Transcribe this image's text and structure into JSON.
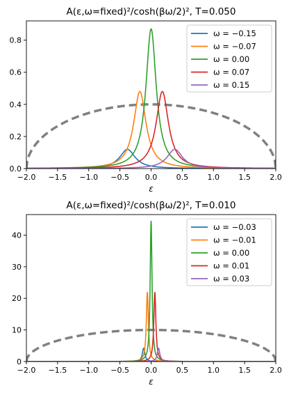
{
  "chart_data": [
    {
      "type": "line",
      "title": "A(ε,ω=fixed)²/cosh(βω/2)², T=0.050",
      "xlabel": "ε",
      "ylabel": "",
      "xlim": [
        -2.0,
        2.0
      ],
      "ylim": [
        0,
        0.92
      ],
      "x_ticks": [
        -2.0,
        -1.5,
        -1.0,
        -0.5,
        0.0,
        0.5,
        1.0,
        1.5,
        2.0
      ],
      "x_tick_labels": [
        "−2.0",
        "−1.5",
        "−1.0",
        "−0.5",
        "0.0",
        "0.5",
        "1.0",
        "1.5",
        "2.0"
      ],
      "y_ticks": [
        0.0,
        0.2,
        0.4,
        0.6,
        0.8
      ],
      "y_tick_labels": [
        "0.0",
        "0.2",
        "0.4",
        "0.6",
        "0.8"
      ],
      "legend_position": "top-right",
      "reference_curve": {
        "shape": "semicircle",
        "half_width": 2.0,
        "peak": 0.4,
        "color": "#808080",
        "dashed": true
      },
      "series": [
        {
          "name": "ω = −0.15",
          "color": "#1f77b4",
          "peak_x": -0.38,
          "peak_y": 0.12,
          "width": 0.15
        },
        {
          "name": "ω = −0.07",
          "color": "#ff7f0e",
          "peak_x": -0.18,
          "peak_y": 0.48,
          "width": 0.12
        },
        {
          "name": "ω = 0.00",
          "color": "#2ca02c",
          "peak_x": 0.0,
          "peak_y": 0.87,
          "width": 0.1
        },
        {
          "name": "ω = 0.07",
          "color": "#d62728",
          "peak_x": 0.18,
          "peak_y": 0.48,
          "width": 0.12
        },
        {
          "name": "ω = 0.15",
          "color": "#9467bd",
          "peak_x": 0.38,
          "peak_y": 0.12,
          "width": 0.15
        }
      ]
    },
    {
      "type": "line",
      "title": "A(ε,ω=fixed)²/cosh(βω/2)², T=0.010",
      "xlabel": "ε",
      "ylabel": "",
      "xlim": [
        -2.0,
        2.0
      ],
      "ylim": [
        0,
        46.5
      ],
      "x_ticks": [
        -2.0,
        -1.5,
        -1.0,
        -0.5,
        0.0,
        0.5,
        1.0,
        1.5,
        2.0
      ],
      "x_tick_labels": [
        "−2.0",
        "−1.5",
        "−1.0",
        "−0.5",
        "0.0",
        "0.5",
        "1.0",
        "1.5",
        "2.0"
      ],
      "y_ticks": [
        0,
        10,
        20,
        30,
        40
      ],
      "y_tick_labels": [
        "0",
        "10",
        "20",
        "30",
        "40"
      ],
      "legend_position": "top-right",
      "reference_curve": {
        "shape": "semicircle",
        "half_width": 2.0,
        "peak": 10.0,
        "color": "#808080",
        "dashed": true
      },
      "series": [
        {
          "name": "ω = −0.03",
          "color": "#1f77b4",
          "peak_x": -0.12,
          "peak_y": 4.2,
          "width": 0.025
        },
        {
          "name": "ω = −0.01",
          "color": "#ff7f0e",
          "peak_x": -0.06,
          "peak_y": 22.0,
          "width": 0.02
        },
        {
          "name": "ω = 0.00",
          "color": "#2ca02c",
          "peak_x": 0.0,
          "peak_y": 44.5,
          "width": 0.018
        },
        {
          "name": "ω = 0.01",
          "color": "#d62728",
          "peak_x": 0.06,
          "peak_y": 22.0,
          "width": 0.02
        },
        {
          "name": "ω = 0.03",
          "color": "#9467bd",
          "peak_x": 0.12,
          "peak_y": 4.2,
          "width": 0.025
        }
      ]
    }
  ]
}
